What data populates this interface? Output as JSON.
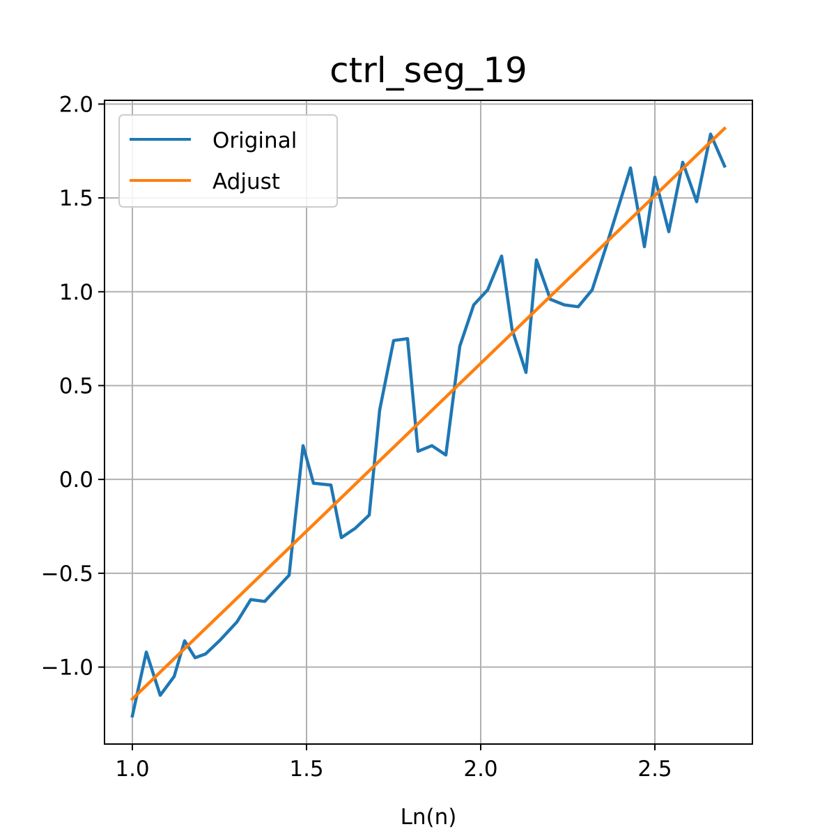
{
  "chart_data": {
    "type": "line",
    "title": "ctrl_seg_19",
    "xlabel": "Ln(n)",
    "ylabel": "",
    "xlim": [
      0.92,
      2.78
    ],
    "ylim": [
      -1.41,
      2.02
    ],
    "xticks": [
      1.0,
      1.5,
      2.0,
      2.5
    ],
    "xtick_labels": [
      "1.0",
      "1.5",
      "2.0",
      "2.5"
    ],
    "yticks": [
      -1.0,
      -0.5,
      0.0,
      0.5,
      1.0,
      1.5,
      2.0
    ],
    "ytick_labels": [
      "−1.0",
      "−0.5",
      "0.0",
      "0.5",
      "1.0",
      "1.5",
      "2.0"
    ],
    "grid": true,
    "legend_position": "upper-left",
    "series": [
      {
        "name": "Original",
        "color": "#1f77b4",
        "x": [
          1.0,
          1.04,
          1.08,
          1.12,
          1.15,
          1.18,
          1.21,
          1.25,
          1.3,
          1.34,
          1.38,
          1.41,
          1.45,
          1.49,
          1.52,
          1.57,
          1.6,
          1.64,
          1.68,
          1.71,
          1.75,
          1.79,
          1.82,
          1.86,
          1.9,
          1.94,
          1.98,
          2.02,
          2.06,
          2.09,
          2.13,
          2.16,
          2.2,
          2.24,
          2.28,
          2.32,
          2.36,
          2.4,
          2.43,
          2.47,
          2.5,
          2.54,
          2.58,
          2.62,
          2.66,
          2.7
        ],
        "y": [
          -1.26,
          -0.92,
          -1.15,
          -1.05,
          -0.86,
          -0.95,
          -0.93,
          -0.86,
          -0.76,
          -0.64,
          -0.65,
          -0.59,
          -0.51,
          0.18,
          -0.02,
          -0.03,
          -0.31,
          -0.26,
          -0.19,
          0.37,
          0.74,
          0.75,
          0.15,
          0.18,
          0.13,
          0.71,
          0.93,
          1.01,
          1.19,
          0.8,
          0.57,
          1.17,
          0.96,
          0.93,
          0.92,
          1.01,
          1.24,
          1.48,
          1.66,
          1.24,
          1.61,
          1.32,
          1.69,
          1.48,
          1.84,
          1.67
        ]
      },
      {
        "name": "Adjust",
        "color": "#ff7f0e",
        "x": [
          1.0,
          2.7
        ],
        "y": [
          -1.17,
          1.87
        ]
      }
    ]
  }
}
